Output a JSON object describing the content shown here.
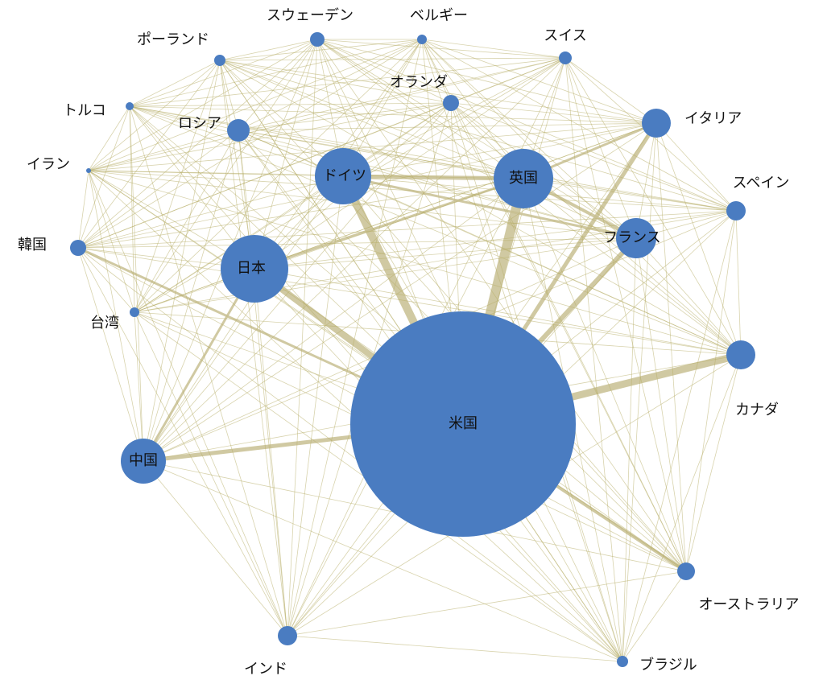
{
  "nodes": [
    {
      "label": "米国"
    },
    {
      "label": "英国"
    },
    {
      "label": "ドイツ"
    },
    {
      "label": "日本"
    },
    {
      "label": "フランス"
    },
    {
      "label": "中国"
    },
    {
      "label": "イタリア"
    },
    {
      "label": "カナダ"
    },
    {
      "label": "スペイン"
    },
    {
      "label": "オランダ"
    },
    {
      "label": "ロシア"
    },
    {
      "label": "スウェーデン"
    },
    {
      "label": "ベルギー"
    },
    {
      "label": "スイス"
    },
    {
      "label": "ポーランド"
    },
    {
      "label": "トルコ"
    },
    {
      "label": "イラン"
    },
    {
      "label": "韓国"
    },
    {
      "label": "台湾"
    },
    {
      "label": "オーストラリア"
    },
    {
      "label": "インド"
    },
    {
      "label": "ブラジル"
    }
  ]
}
